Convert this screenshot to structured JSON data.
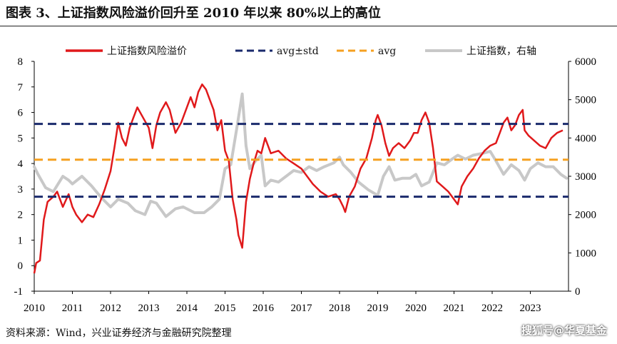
{
  "title": "图表 3、上证指数风险溢价回升至 2010 年以来 80%以上的高位",
  "source": "资料来源：Wind，兴业证券经济与金融研究院整理",
  "watermark": "搜狐号@华夏基金",
  "chart_data": {
    "type": "line",
    "x_axis": {
      "ticks": [
        "2010",
        "2011",
        "2012",
        "2013",
        "2014",
        "2015",
        "2016",
        "2017",
        "2018",
        "2019",
        "2020",
        "2021",
        "2022",
        "2023"
      ],
      "range": [
        2010,
        2024
      ]
    },
    "y_left": {
      "range": [
        -1,
        8
      ],
      "ticks": [
        -1,
        0,
        1,
        2,
        3,
        4,
        5,
        6,
        7,
        8
      ]
    },
    "y_right": {
      "range": [
        0,
        6000
      ],
      "ticks": [
        0,
        1000,
        2000,
        3000,
        4000,
        5000,
        6000
      ]
    },
    "legend_position": "top",
    "series": [
      {
        "name": "上证指数风险溢价",
        "axis": "left",
        "color": "#e0191b",
        "style": "solid",
        "points": [
          [
            2010.0,
            -0.3
          ],
          [
            2010.05,
            0.1
          ],
          [
            2010.15,
            0.2
          ],
          [
            2010.25,
            1.8
          ],
          [
            2010.35,
            2.5
          ],
          [
            2010.5,
            2.7
          ],
          [
            2010.6,
            2.9
          ],
          [
            2010.75,
            2.3
          ],
          [
            2010.9,
            2.8
          ],
          [
            2011.0,
            2.3
          ],
          [
            2011.1,
            2.0
          ],
          [
            2011.25,
            1.7
          ],
          [
            2011.4,
            2.0
          ],
          [
            2011.55,
            1.9
          ],
          [
            2011.7,
            2.4
          ],
          [
            2011.85,
            3.0
          ],
          [
            2012.0,
            3.7
          ],
          [
            2012.1,
            4.6
          ],
          [
            2012.2,
            5.6
          ],
          [
            2012.3,
            5.0
          ],
          [
            2012.4,
            4.7
          ],
          [
            2012.5,
            5.4
          ],
          [
            2012.6,
            5.8
          ],
          [
            2012.7,
            6.2
          ],
          [
            2012.85,
            5.8
          ],
          [
            2013.0,
            5.4
          ],
          [
            2013.1,
            4.6
          ],
          [
            2013.2,
            5.5
          ],
          [
            2013.3,
            6.0
          ],
          [
            2013.45,
            6.4
          ],
          [
            2013.55,
            6.1
          ],
          [
            2013.7,
            5.2
          ],
          [
            2013.85,
            5.6
          ],
          [
            2014.0,
            6.2
          ],
          [
            2014.1,
            6.6
          ],
          [
            2014.2,
            6.2
          ],
          [
            2014.3,
            6.8
          ],
          [
            2014.4,
            7.1
          ],
          [
            2014.5,
            6.9
          ],
          [
            2014.6,
            6.5
          ],
          [
            2014.7,
            6.1
          ],
          [
            2014.8,
            5.3
          ],
          [
            2014.9,
            5.7
          ],
          [
            2015.0,
            4.5
          ],
          [
            2015.1,
            4.1
          ],
          [
            2015.2,
            2.6
          ],
          [
            2015.3,
            1.8
          ],
          [
            2015.35,
            1.2
          ],
          [
            2015.45,
            0.7
          ],
          [
            2015.55,
            2.5
          ],
          [
            2015.65,
            3.4
          ],
          [
            2015.75,
            4.0
          ],
          [
            2015.85,
            4.5
          ],
          [
            2015.95,
            4.4
          ],
          [
            2016.05,
            5.0
          ],
          [
            2016.2,
            4.4
          ],
          [
            2016.4,
            4.5
          ],
          [
            2016.6,
            4.2
          ],
          [
            2016.8,
            4.0
          ],
          [
            2017.0,
            3.8
          ],
          [
            2017.15,
            3.5
          ],
          [
            2017.3,
            3.2
          ],
          [
            2017.5,
            2.9
          ],
          [
            2017.7,
            2.7
          ],
          [
            2017.9,
            2.8
          ],
          [
            2018.0,
            2.6
          ],
          [
            2018.1,
            2.3
          ],
          [
            2018.15,
            2.1
          ],
          [
            2018.25,
            2.7
          ],
          [
            2018.4,
            3.1
          ],
          [
            2018.55,
            3.8
          ],
          [
            2018.7,
            4.2
          ],
          [
            2018.85,
            5.0
          ],
          [
            2018.95,
            5.7
          ],
          [
            2019.0,
            5.9
          ],
          [
            2019.1,
            5.5
          ],
          [
            2019.2,
            4.8
          ],
          [
            2019.3,
            4.3
          ],
          [
            2019.4,
            4.6
          ],
          [
            2019.55,
            4.8
          ],
          [
            2019.7,
            4.6
          ],
          [
            2019.85,
            4.9
          ],
          [
            2019.95,
            5.2
          ],
          [
            2020.05,
            5.2
          ],
          [
            2020.15,
            5.7
          ],
          [
            2020.25,
            6.0
          ],
          [
            2020.35,
            5.6
          ],
          [
            2020.45,
            4.6
          ],
          [
            2020.55,
            3.3
          ],
          [
            2020.7,
            3.1
          ],
          [
            2020.85,
            2.9
          ],
          [
            2021.0,
            2.6
          ],
          [
            2021.1,
            2.4
          ],
          [
            2021.2,
            3.1
          ],
          [
            2021.35,
            3.5
          ],
          [
            2021.5,
            3.8
          ],
          [
            2021.65,
            4.2
          ],
          [
            2021.8,
            4.5
          ],
          [
            2021.95,
            4.7
          ],
          [
            2022.1,
            4.8
          ],
          [
            2022.2,
            5.2
          ],
          [
            2022.3,
            5.6
          ],
          [
            2022.4,
            5.8
          ],
          [
            2022.5,
            5.3
          ],
          [
            2022.6,
            5.5
          ],
          [
            2022.7,
            5.9
          ],
          [
            2022.8,
            6.1
          ],
          [
            2022.85,
            5.3
          ],
          [
            2022.95,
            5.1
          ],
          [
            2023.1,
            4.9
          ],
          [
            2023.25,
            4.7
          ],
          [
            2023.4,
            4.6
          ],
          [
            2023.55,
            5.0
          ],
          [
            2023.7,
            5.2
          ],
          [
            2023.85,
            5.3
          ]
        ]
      },
      {
        "name": "avg±std",
        "axis": "left",
        "color": "#1a2a6c",
        "style": "dashed",
        "upper": 5.55,
        "lower": 2.7
      },
      {
        "name": "avg",
        "axis": "left",
        "color": "#f5a020",
        "style": "dashed",
        "value": 4.15
      },
      {
        "name": "上证指数，右轴",
        "axis": "right",
        "color": "#c8c8c8",
        "style": "solid",
        "points": [
          [
            2010.0,
            3250
          ],
          [
            2010.1,
            3050
          ],
          [
            2010.3,
            2700
          ],
          [
            2010.5,
            2600
          ],
          [
            2010.75,
            3000
          ],
          [
            2010.9,
            2900
          ],
          [
            2011.0,
            2800
          ],
          [
            2011.25,
            3000
          ],
          [
            2011.5,
            2750
          ],
          [
            2011.75,
            2450
          ],
          [
            2012.0,
            2200
          ],
          [
            2012.2,
            2400
          ],
          [
            2012.45,
            2300
          ],
          [
            2012.65,
            2100
          ],
          [
            2012.9,
            2000
          ],
          [
            2013.05,
            2350
          ],
          [
            2013.2,
            2300
          ],
          [
            2013.45,
            1950
          ],
          [
            2013.7,
            2150
          ],
          [
            2013.9,
            2200
          ],
          [
            2014.2,
            2050
          ],
          [
            2014.45,
            2050
          ],
          [
            2014.65,
            2200
          ],
          [
            2014.85,
            2400
          ],
          [
            2015.0,
            3200
          ],
          [
            2015.15,
            3300
          ],
          [
            2015.3,
            4200
          ],
          [
            2015.45,
            5150
          ],
          [
            2015.55,
            3800
          ],
          [
            2015.65,
            3200
          ],
          [
            2015.8,
            3400
          ],
          [
            2015.95,
            3550
          ],
          [
            2016.05,
            2750
          ],
          [
            2016.2,
            2900
          ],
          [
            2016.4,
            2850
          ],
          [
            2016.6,
            3000
          ],
          [
            2016.8,
            3150
          ],
          [
            2017.0,
            3100
          ],
          [
            2017.2,
            3250
          ],
          [
            2017.4,
            3150
          ],
          [
            2017.6,
            3250
          ],
          [
            2017.85,
            3350
          ],
          [
            2018.0,
            3500
          ],
          [
            2018.1,
            3300
          ],
          [
            2018.3,
            3100
          ],
          [
            2018.5,
            2850
          ],
          [
            2018.75,
            2650
          ],
          [
            2019.0,
            2500
          ],
          [
            2019.15,
            3000
          ],
          [
            2019.3,
            3250
          ],
          [
            2019.45,
            2900
          ],
          [
            2019.65,
            2950
          ],
          [
            2019.85,
            2950
          ],
          [
            2020.0,
            3050
          ],
          [
            2020.15,
            2750
          ],
          [
            2020.35,
            2850
          ],
          [
            2020.55,
            3350
          ],
          [
            2020.75,
            3300
          ],
          [
            2020.95,
            3450
          ],
          [
            2021.1,
            3550
          ],
          [
            2021.3,
            3450
          ],
          [
            2021.5,
            3550
          ],
          [
            2021.75,
            3600
          ],
          [
            2021.95,
            3650
          ],
          [
            2022.1,
            3400
          ],
          [
            2022.3,
            3050
          ],
          [
            2022.5,
            3300
          ],
          [
            2022.7,
            3150
          ],
          [
            2022.85,
            2900
          ],
          [
            2023.0,
            3200
          ],
          [
            2023.2,
            3350
          ],
          [
            2023.4,
            3250
          ],
          [
            2023.6,
            3250
          ],
          [
            2023.8,
            3050
          ],
          [
            2023.95,
            2950
          ]
        ]
      }
    ]
  }
}
